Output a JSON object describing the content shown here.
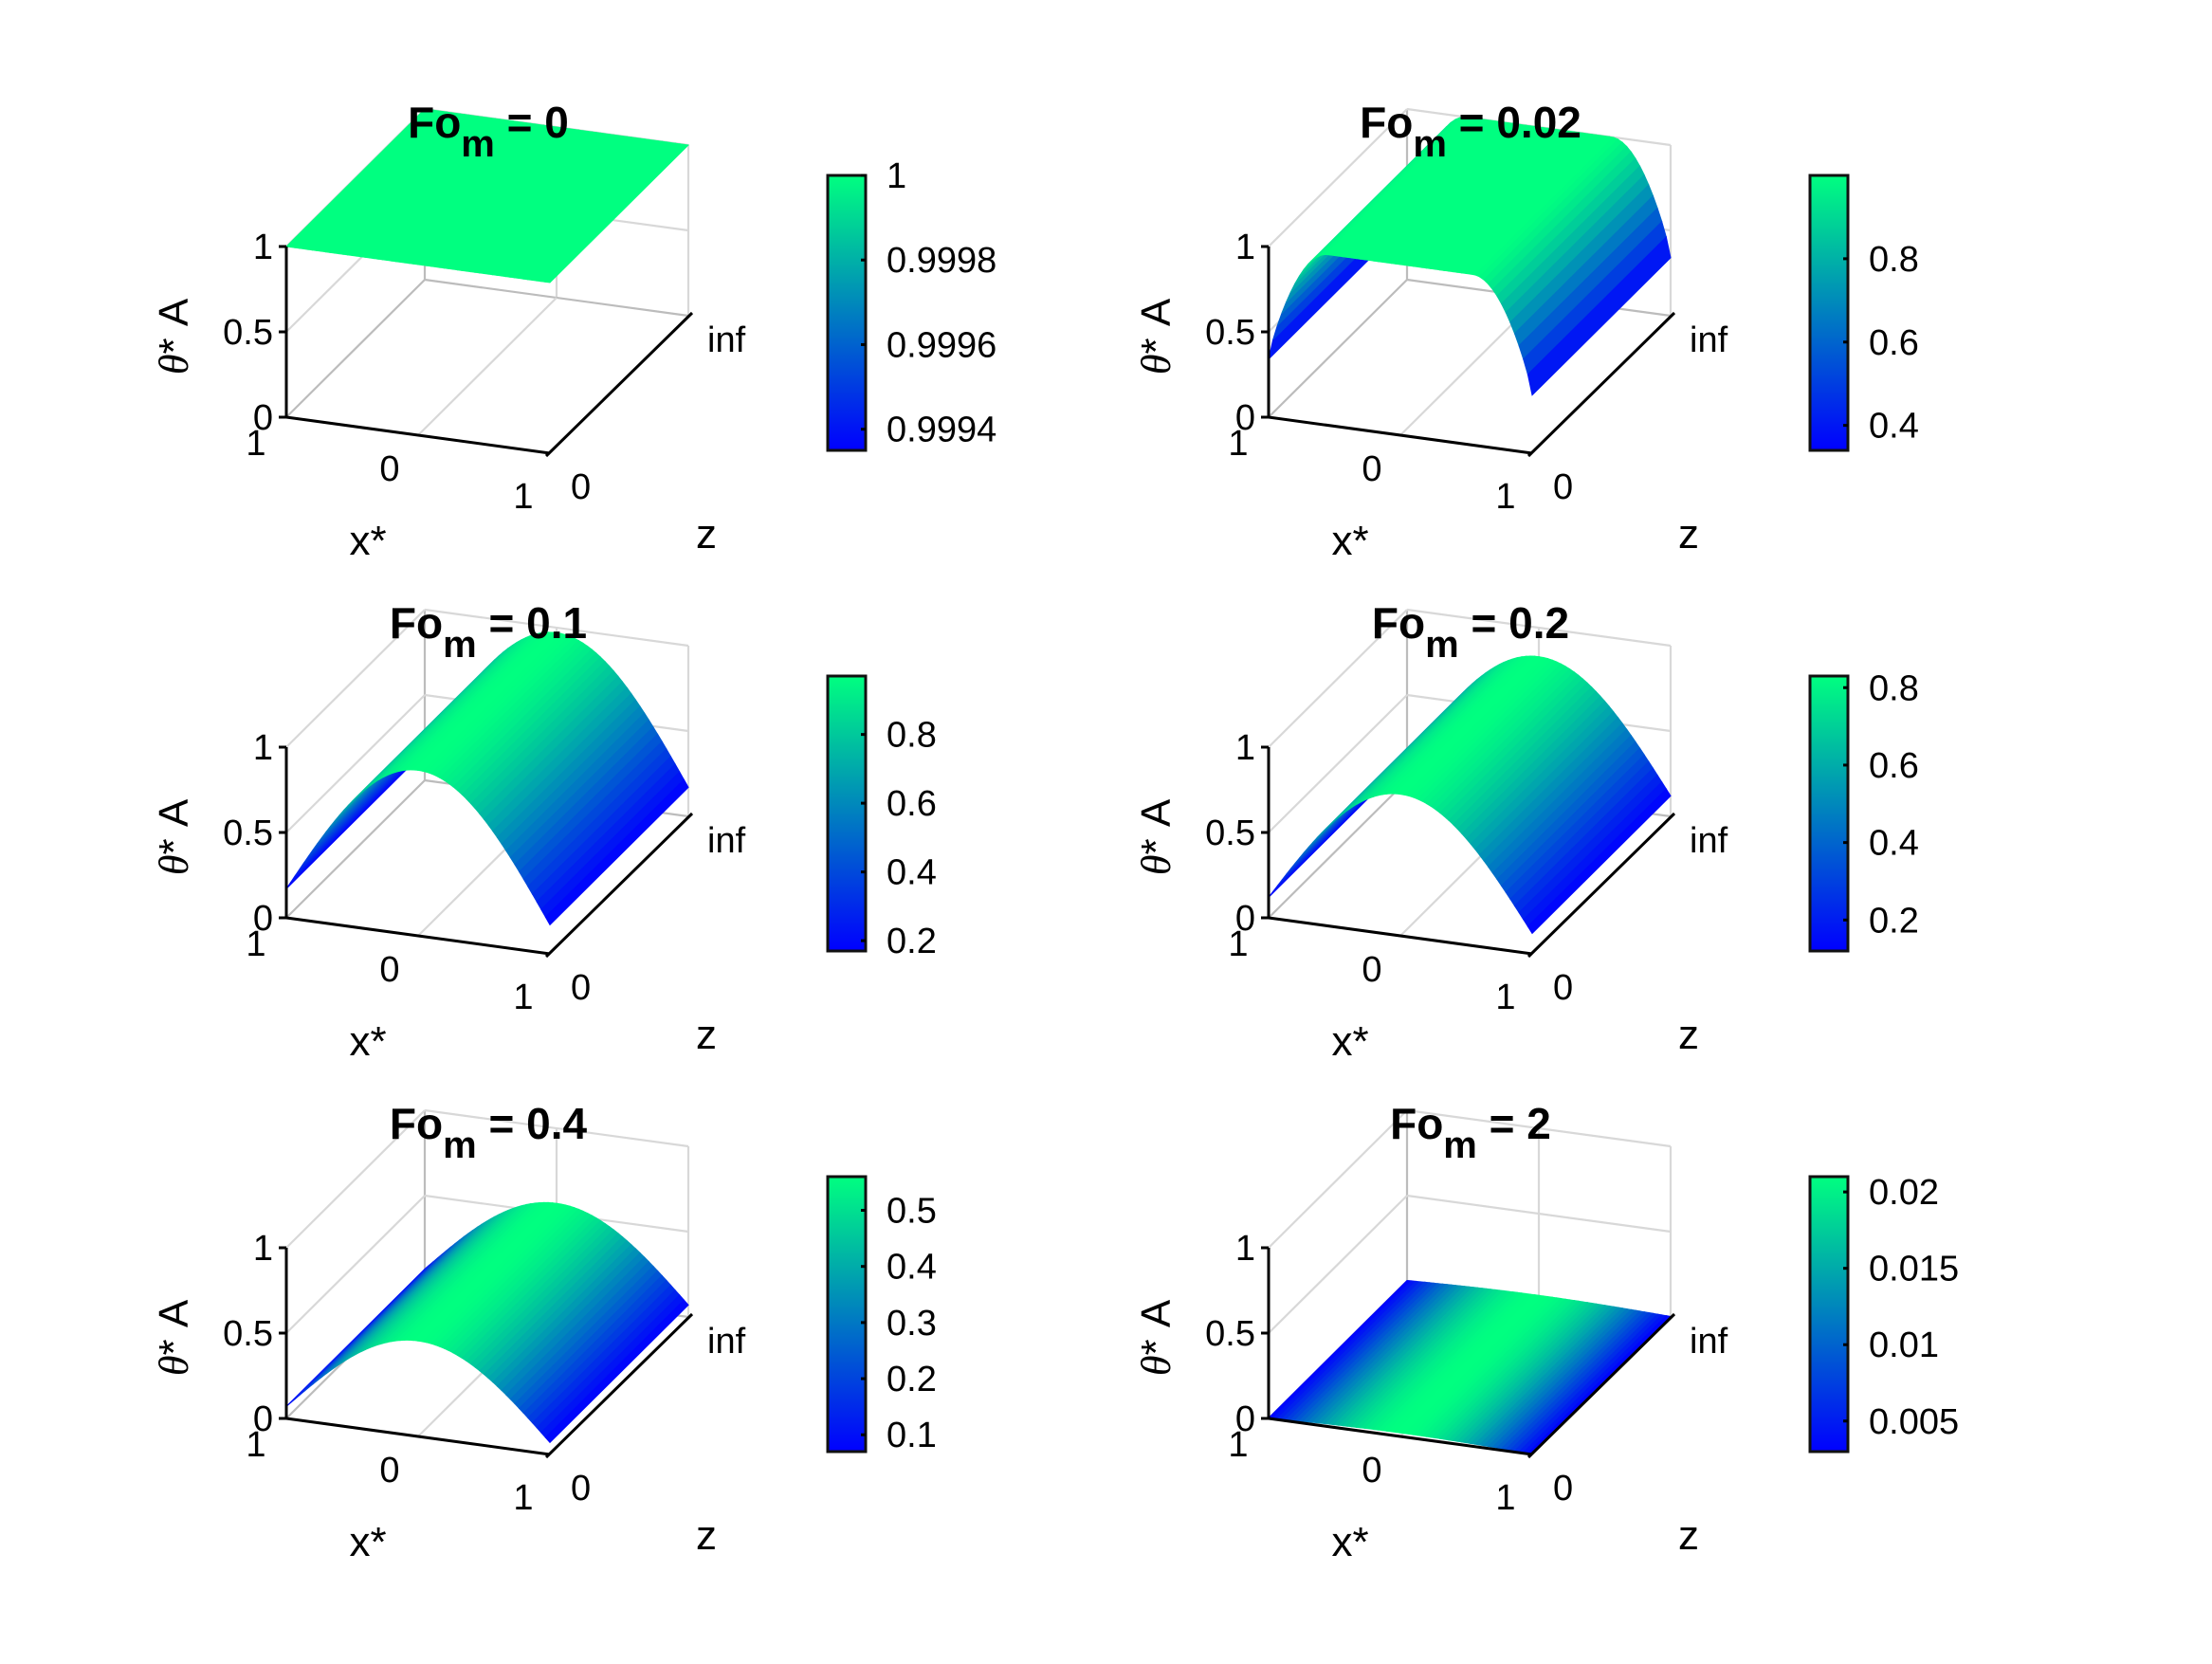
{
  "figure": {
    "layout": "3x2 grid of 3D surface subplots with colorbars",
    "colormap": {
      "name": "winter",
      "low": "#0000ff",
      "high": "#00ff80"
    }
  },
  "chart_data": [
    {
      "type": "surface",
      "title": "Fo_m = 0",
      "title_main": "Fo",
      "title_sub": "m",
      "title_value": "= 0",
      "xlabel": "x*",
      "ylabel": "z",
      "zlabel": "θ* A",
      "x_ticks": [
        "1",
        "0",
        "1"
      ],
      "y_ticks": [
        "0",
        "inf"
      ],
      "z_ticks": [
        "0",
        "0.5",
        "1"
      ],
      "zlim": [
        0,
        1
      ],
      "surface_profile": "flat",
      "surface_peak": 1.0,
      "surface_edge": 1.0,
      "colorbar": {
        "ticks": [
          "1",
          "0.9998",
          "0.9996",
          "0.9994"
        ],
        "range": [
          0.99935,
          1.0
        ]
      }
    },
    {
      "type": "surface",
      "title": "Fo_m = 0.02",
      "title_main": "Fo",
      "title_sub": "m",
      "title_value": "= 0.02",
      "xlabel": "x*",
      "ylabel": "z",
      "zlabel": "θ* A",
      "x_ticks": [
        "1",
        "0",
        "1"
      ],
      "y_ticks": [
        "0",
        "inf"
      ],
      "z_ticks": [
        "0",
        "0.5",
        "1"
      ],
      "zlim": [
        0,
        1
      ],
      "surface_profile": "plateau",
      "surface_peak": 1.0,
      "surface_edge": 0.34,
      "colorbar": {
        "ticks": [
          "0.8",
          "0.6",
          "0.4"
        ],
        "range": [
          0.34,
          1.0
        ]
      }
    },
    {
      "type": "surface",
      "title": "Fo_m = 0.1",
      "title_main": "Fo",
      "title_sub": "m",
      "title_value": "= 0.1",
      "xlabel": "x*",
      "ylabel": "z",
      "zlabel": "θ* A",
      "x_ticks": [
        "1",
        "0",
        "1"
      ],
      "y_ticks": [
        "0",
        "inf"
      ],
      "z_ticks": [
        "0",
        "0.5",
        "1"
      ],
      "zlim": [
        0,
        1
      ],
      "surface_profile": "cosine",
      "surface_peak": 0.97,
      "surface_edge": 0.17,
      "colorbar": {
        "ticks": [
          "0.8",
          "0.6",
          "0.4",
          "0.2"
        ],
        "range": [
          0.17,
          0.97
        ]
      }
    },
    {
      "type": "surface",
      "title": "Fo_m = 0.2",
      "title_main": "Fo",
      "title_sub": "m",
      "title_value": "= 0.2",
      "xlabel": "x*",
      "ylabel": "z",
      "zlabel": "θ* A",
      "x_ticks": [
        "1",
        "0",
        "1"
      ],
      "y_ticks": [
        "0",
        "inf"
      ],
      "z_ticks": [
        "0",
        "0.5",
        "1"
      ],
      "zlim": [
        0,
        1
      ],
      "surface_profile": "cosine",
      "surface_peak": 0.83,
      "surface_edge": 0.12,
      "colorbar": {
        "ticks": [
          "0.8",
          "0.6",
          "0.4",
          "0.2"
        ],
        "range": [
          0.12,
          0.83
        ]
      }
    },
    {
      "type": "surface",
      "title": "Fo_m = 0.4",
      "title_main": "Fo",
      "title_sub": "m",
      "title_value": "= 0.4",
      "xlabel": "x*",
      "ylabel": "z",
      "zlabel": "θ* A",
      "x_ticks": [
        "1",
        "0",
        "1"
      ],
      "y_ticks": [
        "0",
        "inf"
      ],
      "z_ticks": [
        "0",
        "0.5",
        "1"
      ],
      "zlim": [
        0,
        1
      ],
      "surface_profile": "cosine",
      "surface_peak": 0.56,
      "surface_edge": 0.07,
      "colorbar": {
        "ticks": [
          "0.5",
          "0.4",
          "0.3",
          "0.2",
          "0.1"
        ],
        "range": [
          0.07,
          0.56
        ]
      }
    },
    {
      "type": "surface",
      "title": "Fo_m = 2",
      "title_main": "Fo",
      "title_sub": "m",
      "title_value": "= 2",
      "xlabel": "x*",
      "ylabel": "z",
      "zlabel": "θ* A",
      "x_ticks": [
        "1",
        "0",
        "1"
      ],
      "y_ticks": [
        "0",
        "inf"
      ],
      "z_ticks": [
        "0",
        "0.5",
        "1"
      ],
      "zlim": [
        0,
        1
      ],
      "surface_profile": "cosine",
      "surface_peak": 0.021,
      "surface_edge": 0.003,
      "colorbar": {
        "ticks": [
          "0.02",
          "0.015",
          "0.01",
          "0.005"
        ],
        "range": [
          0.003,
          0.021
        ]
      }
    }
  ]
}
